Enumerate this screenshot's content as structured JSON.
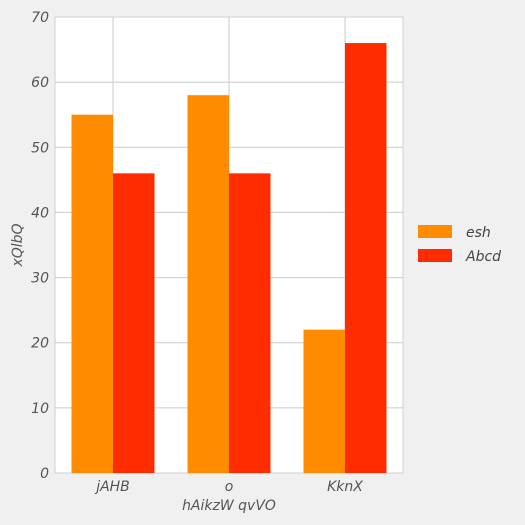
{
  "chart_data": {
    "type": "bar",
    "categories": [
      "jAHB",
      "o",
      "KknX"
    ],
    "series": [
      {
        "name": "esh",
        "values": [
          55,
          58,
          22
        ],
        "color": "#ff8c00"
      },
      {
        "name": "Abcd",
        "values": [
          46,
          46,
          66
        ],
        "color": "#ff2c00"
      }
    ],
    "xlabel": "hAikzW qvVO",
    "ylabel": "xQlbQ",
    "ylim": [
      0,
      70
    ],
    "yticks": [
      0,
      10,
      20,
      30,
      40,
      50,
      60,
      70
    ],
    "grid": true,
    "legend_position": "right"
  }
}
